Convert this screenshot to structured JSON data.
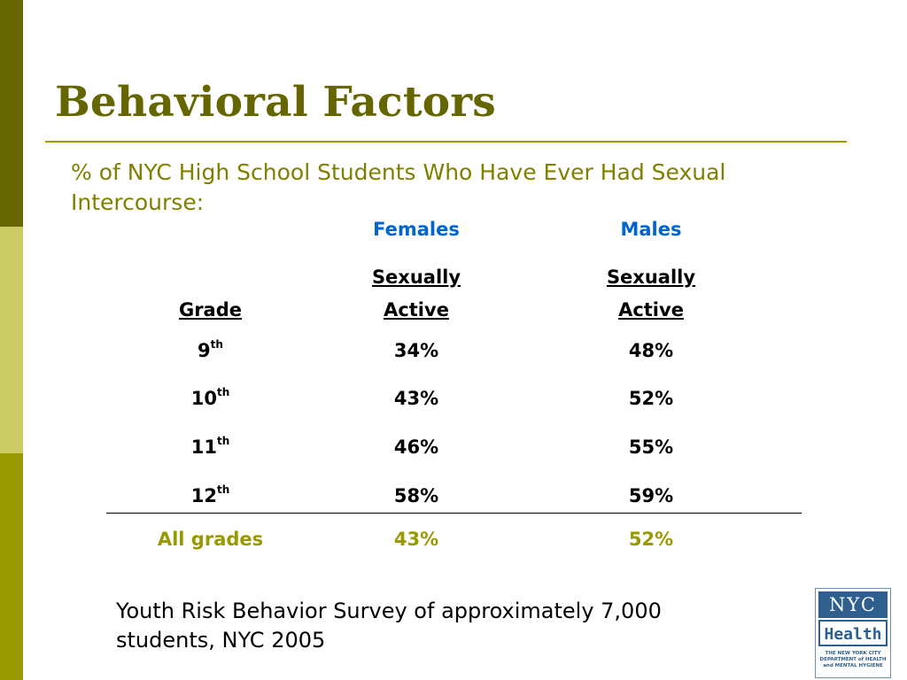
{
  "slide": {
    "title": "Behavioral Factors",
    "subtitle": "% of NYC High School Students Who Have Ever Had Sexual Intercourse:",
    "note": "Youth Risk Behavior Survey of approximately 7,000 students, NYC 2005"
  },
  "table": {
    "group_headers": {
      "females": "Females",
      "males": "Males"
    },
    "col_headers": {
      "grade": "Grade",
      "female_line1": "Sexually",
      "female_line2": "Active",
      "male_line1": "Sexually",
      "male_line2": "Active"
    },
    "rows": [
      {
        "grade": "9",
        "suffix": "th",
        "female": "34%",
        "male": "48%"
      },
      {
        "grade": "10",
        "suffix": "th",
        "female": "43%",
        "male": "52%"
      },
      {
        "grade": "11",
        "suffix": "th",
        "female": "46%",
        "male": "55%"
      },
      {
        "grade": "12",
        "suffix": "th",
        "female": "58%",
        "male": "59%"
      }
    ],
    "total": {
      "grade": "All grades",
      "female": "43%",
      "male": "52%"
    }
  },
  "logo": {
    "line1": "NYC",
    "line2": "Health",
    "small_line1": "THE NEW YORK CITY",
    "small_line2": "DEPARTMENT of HEALTH",
    "small_line3": "and MENTAL HYGIENE"
  },
  "colors": {
    "sidebar_dark": "#666600",
    "sidebar_light": "#cccc66",
    "sidebar_mid": "#999900",
    "title": "#666600",
    "header_blue": "#0066cc",
    "total_olive": "#999900"
  }
}
